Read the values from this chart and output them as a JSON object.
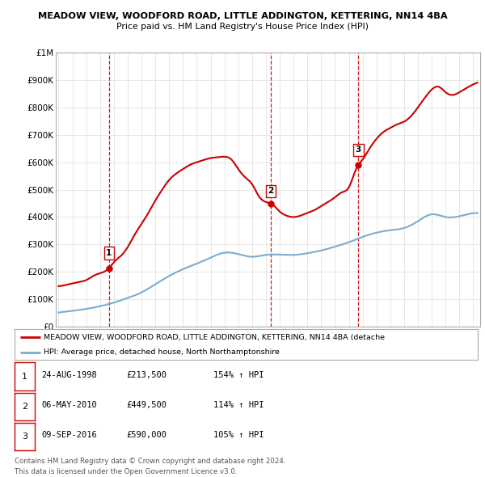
{
  "title1": "MEADOW VIEW, WOODFORD ROAD, LITTLE ADDINGTON, KETTERING, NN14 4BA",
  "title2": "Price paid vs. HM Land Registry's House Price Index (HPI)",
  "ylabel_ticks": [
    "£0",
    "£100K",
    "£200K",
    "£300K",
    "£400K",
    "£500K",
    "£600K",
    "£700K",
    "£800K",
    "£900K",
    "£1M"
  ],
  "ytick_values": [
    0,
    100000,
    200000,
    300000,
    400000,
    500000,
    600000,
    700000,
    800000,
    900000,
    1000000
  ],
  "xlim_start": 1994.8,
  "xlim_end": 2025.5,
  "ylim_min": 0,
  "ylim_max": 1000000,
  "sale_dates": [
    1998.646,
    2010.344,
    2016.686
  ],
  "sale_prices": [
    213500,
    449500,
    590000
  ],
  "sale_labels": [
    "1",
    "2",
    "3"
  ],
  "legend_line1": "MEADOW VIEW, WOODFORD ROAD, LITTLE ADDINGTON, KETTERING, NN14 4BA (detache",
  "legend_line2": "HPI: Average price, detached house, North Northamptonshire",
  "table_data": [
    [
      "1",
      "24-AUG-1998",
      "£213,500",
      "154% ↑ HPI"
    ],
    [
      "2",
      "06-MAY-2010",
      "£449,500",
      "114% ↑ HPI"
    ],
    [
      "3",
      "09-SEP-2016",
      "£590,000",
      "105% ↑ HPI"
    ]
  ],
  "footer1": "Contains HM Land Registry data © Crown copyright and database right 2024.",
  "footer2": "This data is licensed under the Open Government Licence v3.0.",
  "line_color_red": "#cc0000",
  "line_color_blue": "#7aadcf",
  "vline_color": "#cc0000",
  "background_color": "#ffffff",
  "grid_color": "#dddddd",
  "hpi_x": [
    1995,
    1996,
    1997,
    1998,
    1999,
    2000,
    2001,
    2002,
    2003,
    2004,
    2005,
    2006,
    2007,
    2008,
    2009,
    2010,
    2011,
    2012,
    2013,
    2014,
    2015,
    2016,
    2017,
    2018,
    2019,
    2020,
    2021,
    2022,
    2023,
    2024,
    2025.3
  ],
  "hpi_y": [
    52000,
    58000,
    65000,
    75000,
    88000,
    105000,
    125000,
    155000,
    185000,
    210000,
    230000,
    252000,
    270000,
    265000,
    255000,
    262000,
    263000,
    262000,
    268000,
    278000,
    292000,
    308000,
    328000,
    343000,
    352000,
    360000,
    385000,
    410000,
    400000,
    403000,
    415000
  ],
  "red_x": [
    1995,
    1995.5,
    1996,
    1996.5,
    1997,
    1997.5,
    1998,
    1998.646,
    1999,
    1999.5,
    2000,
    2000.5,
    2001,
    2001.5,
    2002,
    2002.5,
    2003,
    2003.5,
    2004,
    2004.5,
    2005,
    2005.5,
    2006,
    2006.5,
    2007,
    2007.5,
    2008,
    2008.5,
    2009,
    2009.5,
    2010,
    2010.344,
    2010.5,
    2011,
    2011.5,
    2012,
    2012.5,
    2013,
    2013.5,
    2014,
    2014.5,
    2015,
    2015.5,
    2016,
    2016.5,
    2016.686,
    2017,
    2017.5,
    2018,
    2018.5,
    2019,
    2019.5,
    2020,
    2020.5,
    2021,
    2021.5,
    2022,
    2022.5,
    2023,
    2023.5,
    2024,
    2024.5,
    2025.3
  ],
  "red_y": [
    148000,
    152000,
    158000,
    163000,
    170000,
    185000,
    195000,
    213500,
    235000,
    258000,
    290000,
    335000,
    375000,
    415000,
    460000,
    500000,
    535000,
    558000,
    575000,
    590000,
    600000,
    608000,
    615000,
    618000,
    620000,
    610000,
    575000,
    545000,
    520000,
    475000,
    455000,
    449500,
    445000,
    420000,
    405000,
    400000,
    405000,
    415000,
    425000,
    440000,
    455000,
    472000,
    490000,
    508000,
    572000,
    590000,
    610000,
    650000,
    685000,
    710000,
    725000,
    738000,
    748000,
    768000,
    800000,
    835000,
    865000,
    875000,
    855000,
    845000,
    855000,
    870000,
    890000
  ]
}
